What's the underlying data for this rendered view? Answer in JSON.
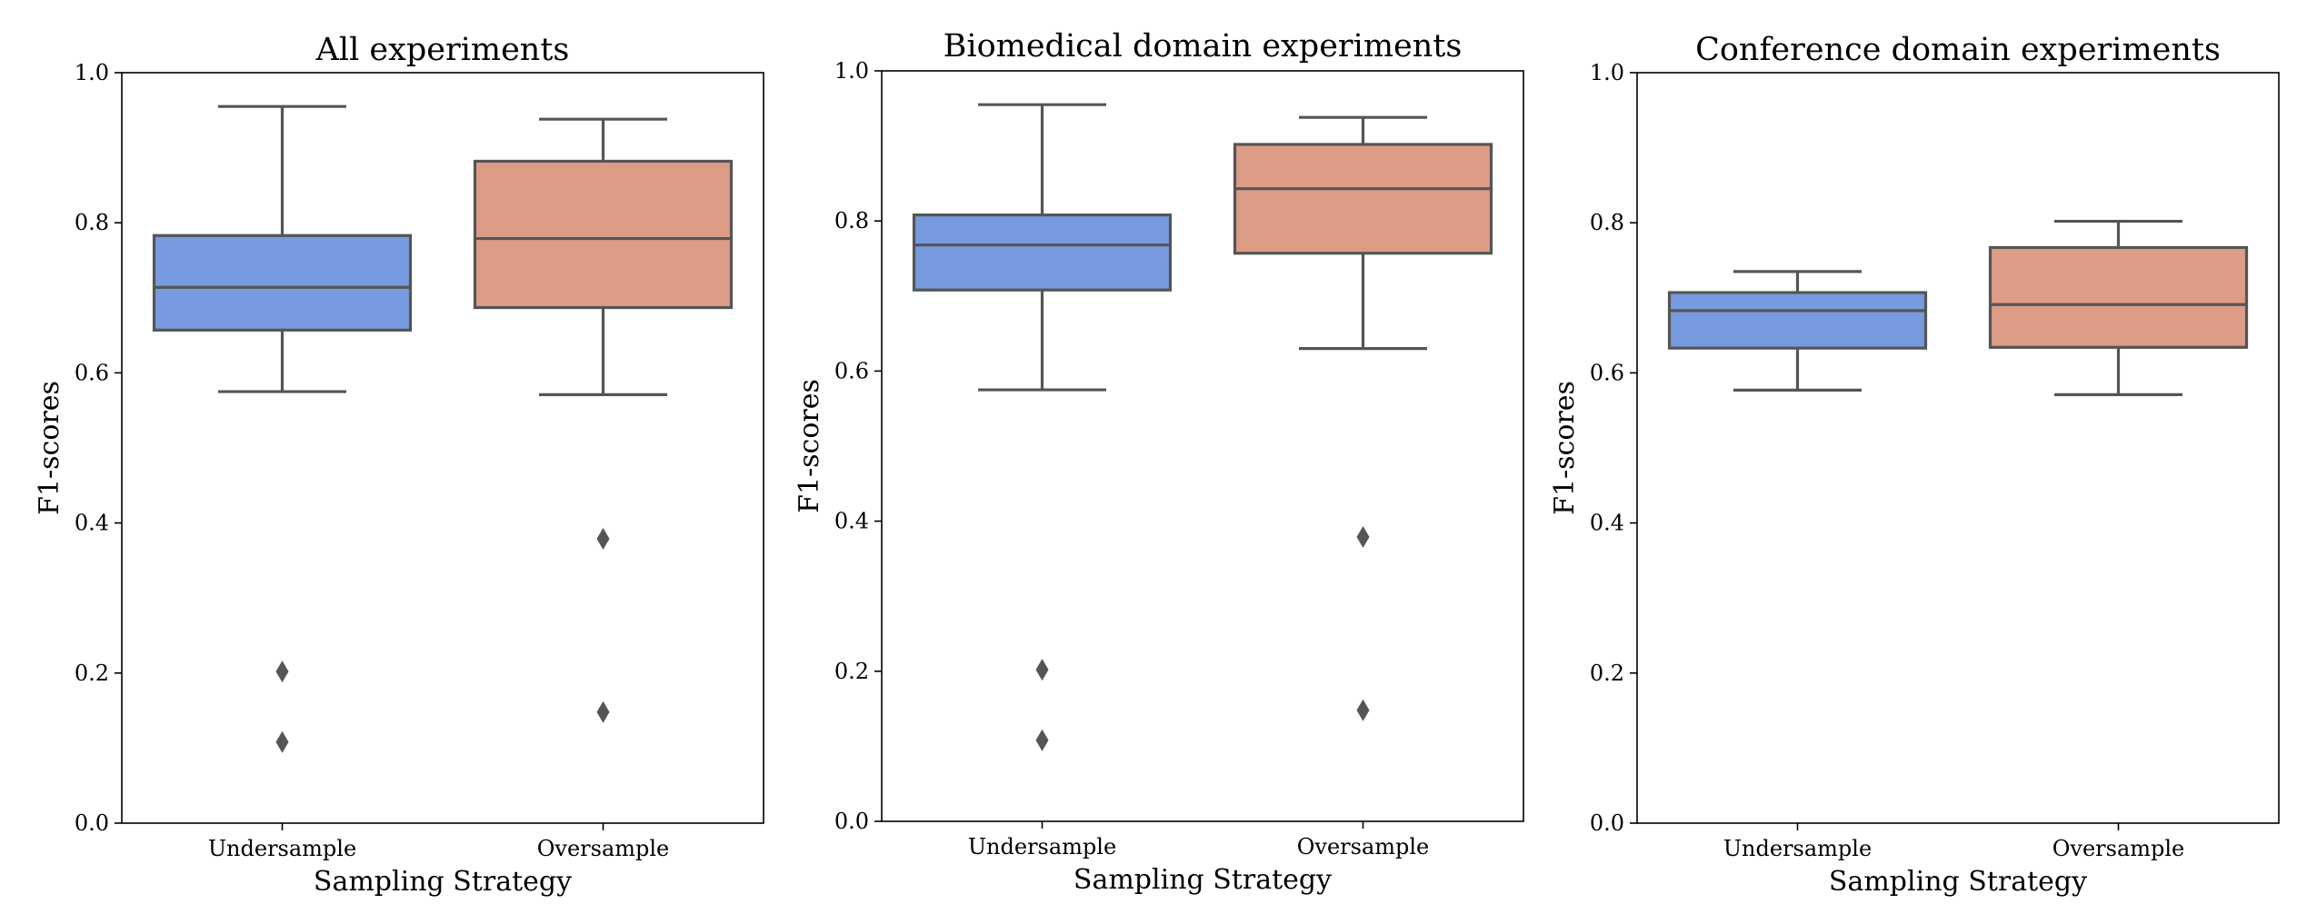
{
  "colors": {
    "undersample": "#779bde",
    "oversample": "#dc9c86",
    "lines": "#555555"
  },
  "chart_data": [
    {
      "type": "box",
      "title": "All experiments",
      "xlabel": "Sampling Strategy",
      "ylabel": "F1-scores",
      "ylim": [
        0,
        1
      ],
      "yticks": [
        "0.0",
        "0.2",
        "0.4",
        "0.6",
        "0.8",
        "1.0"
      ],
      "categories": [
        "Undersample",
        "Oversample"
      ],
      "boxes": [
        {
          "category": "Undersample",
          "whisker_low": 0.575,
          "q1": 0.657,
          "median": 0.714,
          "q3": 0.783,
          "whisker_high": 0.955,
          "outliers": [
            0.202,
            0.108
          ]
        },
        {
          "category": "Oversample",
          "whisker_low": 0.571,
          "q1": 0.687,
          "median": 0.779,
          "q3": 0.882,
          "whisker_high": 0.938,
          "outliers": [
            0.379,
            0.148
          ]
        }
      ]
    },
    {
      "type": "box",
      "title": "Biomedical domain experiments",
      "xlabel": "Sampling Strategy",
      "ylabel": "F1-scores",
      "ylim": [
        0,
        1
      ],
      "yticks": [
        "0.0",
        "0.2",
        "0.4",
        "0.6",
        "0.8",
        "1.0"
      ],
      "categories": [
        "Undersample",
        "Oversample"
      ],
      "boxes": [
        {
          "category": "Undersample",
          "whisker_low": 0.575,
          "q1": 0.708,
          "median": 0.768,
          "q3": 0.808,
          "whisker_high": 0.955,
          "outliers": [
            0.202,
            0.108
          ]
        },
        {
          "category": "Oversample",
          "whisker_low": 0.63,
          "q1": 0.757,
          "median": 0.843,
          "q3": 0.902,
          "whisker_high": 0.938,
          "outliers": [
            0.379,
            0.148
          ]
        }
      ]
    },
    {
      "type": "box",
      "title": "Conference domain experiments",
      "xlabel": "Sampling Strategy",
      "ylabel": "F1-scores",
      "ylim": [
        0,
        1
      ],
      "yticks": [
        "0.0",
        "0.2",
        "0.4",
        "0.6",
        "0.8",
        "1.0"
      ],
      "categories": [
        "Undersample",
        "Oversample"
      ],
      "boxes": [
        {
          "category": "Undersample",
          "whisker_low": 0.577,
          "q1": 0.633,
          "median": 0.683,
          "q3": 0.707,
          "whisker_high": 0.735,
          "outliers": []
        },
        {
          "category": "Oversample",
          "whisker_low": 0.571,
          "q1": 0.634,
          "median": 0.691,
          "q3": 0.767,
          "whisker_high": 0.802,
          "outliers": []
        }
      ]
    }
  ]
}
